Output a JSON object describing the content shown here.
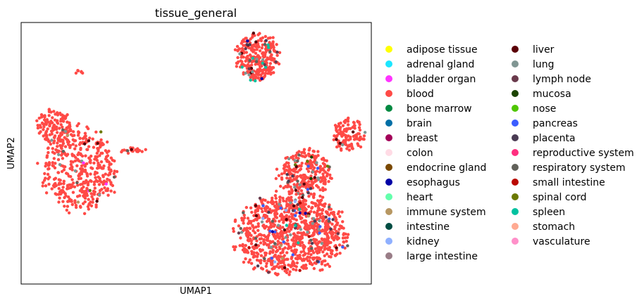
{
  "chart_data": {
    "type": "scatter",
    "title": "tissue_general",
    "xlabel": "UMAP1",
    "ylabel": "UMAP2",
    "xlim": [
      0,
      100
    ],
    "ylim": [
      0,
      100
    ],
    "grid": false,
    "ticks": false,
    "legend_position": "right",
    "legend_columns": 2,
    "categories": [
      {
        "label": "adipose tissue",
        "color": "#ffff00"
      },
      {
        "label": "adrenal gland",
        "color": "#1ce6ff"
      },
      {
        "label": "bladder organ",
        "color": "#ff34ff"
      },
      {
        "label": "blood",
        "color": "#ff4a46"
      },
      {
        "label": "bone marrow",
        "color": "#008941"
      },
      {
        "label": "brain",
        "color": "#006fa6"
      },
      {
        "label": "breast",
        "color": "#a30059"
      },
      {
        "label": "colon",
        "color": "#ffdbe5"
      },
      {
        "label": "endocrine gland",
        "color": "#7a4900"
      },
      {
        "label": "esophagus",
        "color": "#0000a6"
      },
      {
        "label": "heart",
        "color": "#63ffac"
      },
      {
        "label": "immune system",
        "color": "#b79762"
      },
      {
        "label": "intestine",
        "color": "#004d43"
      },
      {
        "label": "kidney",
        "color": "#8fb0ff"
      },
      {
        "label": "large intestine",
        "color": "#997d87"
      },
      {
        "label": "liver",
        "color": "#5a0007"
      },
      {
        "label": "lung",
        "color": "#809693"
      },
      {
        "label": "lymph node",
        "color": "#6a3a4c"
      },
      {
        "label": "mucosa",
        "color": "#1b4400"
      },
      {
        "label": "nose",
        "color": "#4fc601"
      },
      {
        "label": "pancreas",
        "color": "#3b5dff"
      },
      {
        "label": "placenta",
        "color": "#4a3b53"
      },
      {
        "label": "reproductive system",
        "color": "#ff2f80"
      },
      {
        "label": "respiratory system",
        "color": "#61615a"
      },
      {
        "label": "small intestine",
        "color": "#ba0900"
      },
      {
        "label": "spinal cord",
        "color": "#6b7900"
      },
      {
        "label": "spleen",
        "color": "#00c2a0"
      },
      {
        "label": "stomach",
        "color": "#ffaa92"
      },
      {
        "label": "vasculature",
        "color": "#ff90c9"
      }
    ],
    "clusters": [
      {
        "cx": 16.5,
        "cy": 44.0,
        "rx": 10.5,
        "ry": 16.0,
        "n": 420,
        "minor": [
          [
            "lung",
            5
          ],
          [
            "liver",
            4
          ],
          [
            "bladder organ",
            3
          ],
          [
            "spinal cord",
            2
          ],
          [
            "respiratory system",
            3
          ],
          [
            "immune system",
            2
          ]
        ]
      },
      {
        "cx": 9.5,
        "cy": 60.0,
        "rx": 5.0,
        "ry": 6.5,
        "n": 130,
        "minor": [
          [
            "lung",
            2
          ],
          [
            "respiratory system",
            1
          ]
        ]
      },
      {
        "cx": 32.0,
        "cy": 51.0,
        "rx": 3.5,
        "ry": 1.2,
        "n": 18,
        "minor": [
          [
            "liver",
            1
          ],
          [
            "respiratory system",
            1
          ]
        ]
      },
      {
        "cx": 16.5,
        "cy": 81.0,
        "rx": 1.3,
        "ry": 0.9,
        "n": 6,
        "minor": []
      },
      {
        "cx": 67.5,
        "cy": 87.0,
        "rx": 6.0,
        "ry": 8.5,
        "n": 260,
        "minor": [
          [
            "spleen",
            8
          ],
          [
            "liver",
            6
          ],
          [
            "lymph node",
            5
          ],
          [
            "lung",
            6
          ],
          [
            "esophagus",
            2
          ],
          [
            "respiratory system",
            4
          ],
          [
            "placenta",
            3
          ]
        ]
      },
      {
        "cx": 93.5,
        "cy": 57.0,
        "rx": 4.5,
        "ry": 6.0,
        "n": 110,
        "minor": [
          [
            "liver",
            3
          ],
          [
            "lung",
            2
          ]
        ]
      },
      {
        "cx": 81.0,
        "cy": 42.0,
        "rx": 7.5,
        "ry": 9.0,
        "n": 240,
        "minor": [
          [
            "lung",
            10
          ],
          [
            "respiratory system",
            6
          ],
          [
            "placenta",
            5
          ],
          [
            "spinal cord",
            3
          ],
          [
            "liver",
            4
          ],
          [
            "pancreas",
            3
          ],
          [
            "mucosa",
            2
          ]
        ]
      },
      {
        "cx": 77.0,
        "cy": 19.0,
        "rx": 15.5,
        "ry": 15.0,
        "n": 900,
        "minor": [
          [
            "lung",
            18
          ],
          [
            "pancreas",
            14
          ],
          [
            "liver",
            10
          ],
          [
            "respiratory system",
            12
          ],
          [
            "placenta",
            8
          ],
          [
            "lymph node",
            8
          ],
          [
            "spleen",
            4
          ],
          [
            "kidney",
            4
          ],
          [
            "small intestine",
            4
          ],
          [
            "esophagus",
            3
          ],
          [
            "immune system",
            3
          ]
        ]
      }
    ]
  }
}
